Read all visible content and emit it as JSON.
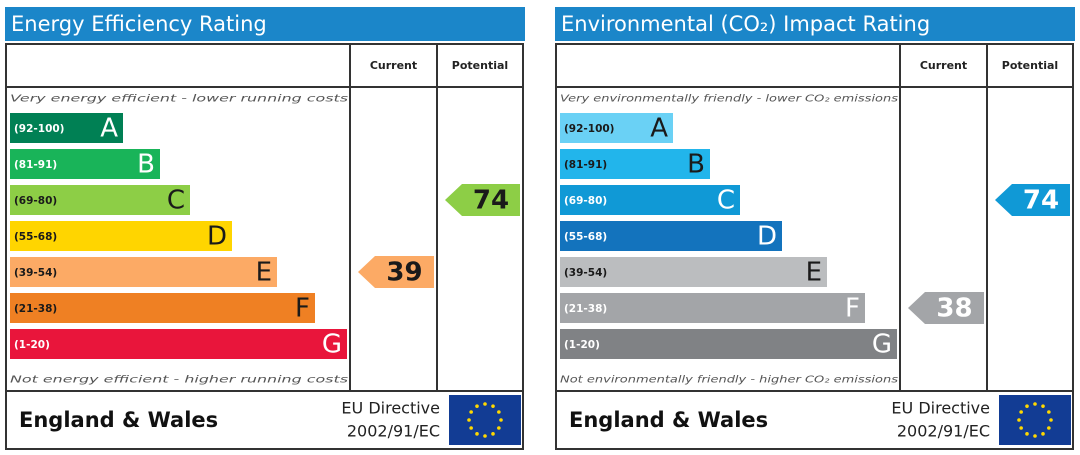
{
  "panels": [
    {
      "title": "Energy Efficiency Rating",
      "columns": [
        "Current",
        "Potential"
      ],
      "top_note": "Very energy efficient - lower running costs",
      "bottom_note": "Not energy efficient - higher running costs",
      "bands": [
        {
          "range": "(92-100)",
          "letter": "A",
          "color": "#008054",
          "text_color": "#ffffff"
        },
        {
          "range": "(81-91)",
          "letter": "B",
          "color": "#19b459",
          "text_color": "#ffffff"
        },
        {
          "range": "(69-80)",
          "letter": "C",
          "color": "#8dce46",
          "text_color": "#1a1a1a"
        },
        {
          "range": "(55-68)",
          "letter": "D",
          "color": "#ffd500",
          "text_color": "#1a1a1a"
        },
        {
          "range": "(39-54)",
          "letter": "E",
          "color": "#fcaa65",
          "text_color": "#1a1a1a"
        },
        {
          "range": "(21-38)",
          "letter": "F",
          "color": "#ef8023",
          "text_color": "#1a1a1a"
        },
        {
          "range": "(1-20)",
          "letter": "G",
          "color": "#e9153b",
          "text_color": "#ffffff"
        }
      ],
      "current": 39,
      "potential": 74,
      "arrow_text_color": "#1a1a1a",
      "region": "England & Wales",
      "directive": [
        "EU Directive",
        "2002/91/EC"
      ]
    },
    {
      "title": "Environmental (CO₂) Impact Rating",
      "columns": [
        "Current",
        "Potential"
      ],
      "top_note": "Very environmentally friendly - lower CO₂ emissions",
      "bottom_note": "Not environmentally friendly - higher CO₂ emissions",
      "bands": [
        {
          "range": "(92-100)",
          "letter": "A",
          "color": "#6ad1f5",
          "text_color": "#1a1a1a"
        },
        {
          "range": "(81-91)",
          "letter": "B",
          "color": "#22b5eb",
          "text_color": "#1a1a1a"
        },
        {
          "range": "(69-80)",
          "letter": "C",
          "color": "#1099d6",
          "text_color": "#ffffff"
        },
        {
          "range": "(55-68)",
          "letter": "D",
          "color": "#1373bd",
          "text_color": "#ffffff"
        },
        {
          "range": "(39-54)",
          "letter": "E",
          "color": "#bbbdbf",
          "text_color": "#1a1a1a"
        },
        {
          "range": "(21-38)",
          "letter": "F",
          "color": "#a3a5a8",
          "text_color": "#ffffff"
        },
        {
          "range": "(1-20)",
          "letter": "G",
          "color": "#808285",
          "text_color": "#ffffff"
        }
      ],
      "current": 38,
      "potential": 74,
      "arrow_text_color": "#ffffff",
      "region": "England & Wales",
      "directive": [
        "EU Directive",
        "2002/91/EC"
      ]
    }
  ]
}
